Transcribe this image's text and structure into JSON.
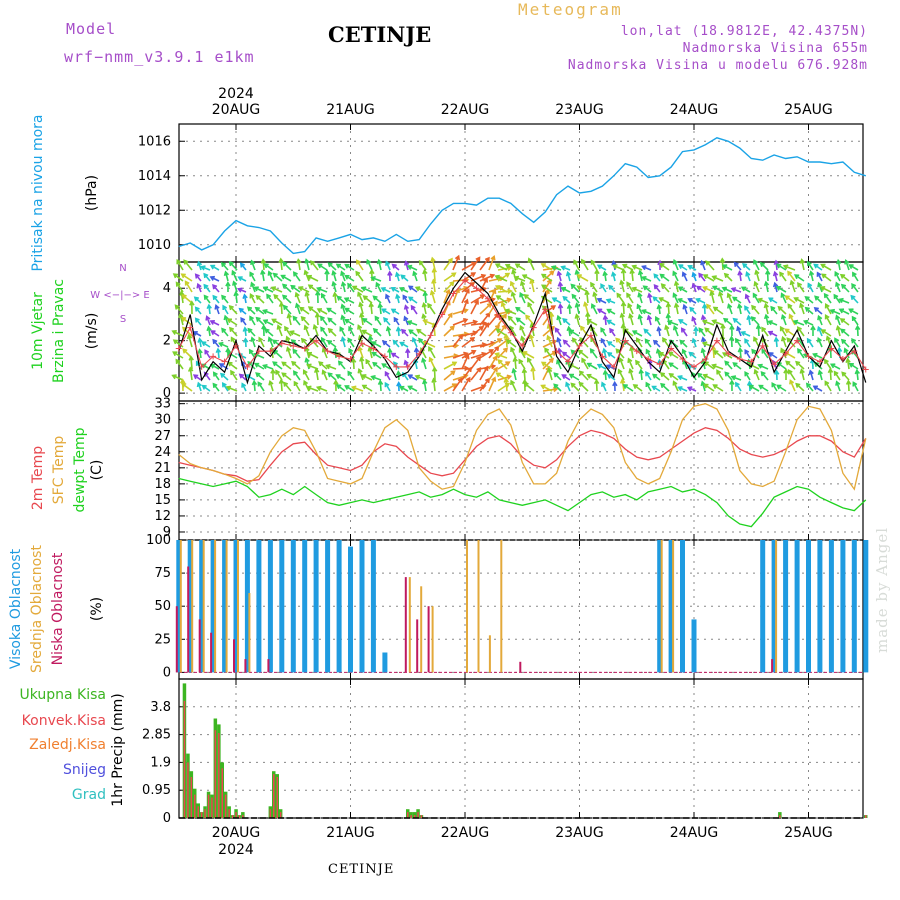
{
  "header": {
    "model_label": "Model",
    "model_name": "wrf−nmm_v3.9.1  e1km",
    "title": "CETINJE",
    "meteogram": "Meteogram",
    "lonlat": "lon,lat (18.9812E, 42.4375N)",
    "elevation": "Nadmorska Visina 655m",
    "model_elevation": "Nadmorska Visina u modelu 676.928m"
  },
  "footer": {
    "station": "CETINJE",
    "made_by": "made by Angel"
  },
  "colors": {
    "pressure": "#1aa3e6",
    "t2m": "#e8484f",
    "sfc": "#e3a93a",
    "dewpt": "#1fd21f",
    "high": "#1f9be0",
    "mid": "#e3a93a",
    "low": "#c0195f",
    "total": "#3cb521",
    "convective": "#e8484f",
    "frozen": "#f08030",
    "snow": "#5050dd",
    "graupel": "#30c0c0"
  },
  "chart_data": [
    {
      "type": "line",
      "panel": "pressure",
      "labels": [
        "Pritisak na nivou mora",
        "(hPa)"
      ],
      "x_ticks": [
        "20AUG",
        "21AUG",
        "22AUG",
        "23AUG",
        "24AUG",
        "25AUG"
      ],
      "top_year": "2024",
      "ylim": [
        1009.0,
        1017.0
      ],
      "y_ticks": [
        1010,
        1012,
        1014,
        1016
      ],
      "x": [
        -0.5,
        -0.4,
        -0.3,
        -0.2,
        -0.1,
        0.0,
        0.1,
        0.2,
        0.3,
        0.4,
        0.5,
        0.6,
        0.7,
        0.8,
        0.9,
        1.0,
        1.1,
        1.2,
        1.3,
        1.4,
        1.5,
        1.6,
        1.7,
        1.8,
        1.9,
        2.0,
        2.1,
        2.2,
        2.3,
        2.4,
        2.5,
        2.6,
        2.7,
        2.8,
        2.9,
        3.0,
        3.1,
        3.2,
        3.3,
        3.4,
        3.5,
        3.6,
        3.7,
        3.8,
        3.9,
        4.0,
        4.1,
        4.2,
        4.3,
        4.4,
        4.5,
        4.6,
        4.7,
        4.8,
        4.9,
        5.0,
        5.1,
        5.2,
        5.3,
        5.4,
        5.5
      ],
      "values": [
        1009.9,
        1010.1,
        1009.7,
        1010.0,
        1010.8,
        1011.4,
        1011.1,
        1011.0,
        1010.8,
        1010.1,
        1009.5,
        1009.6,
        1010.4,
        1010.2,
        1010.4,
        1010.6,
        1010.3,
        1010.4,
        1010.2,
        1010.6,
        1010.2,
        1010.3,
        1011.2,
        1012.0,
        1012.4,
        1012.4,
        1012.3,
        1012.7,
        1012.7,
        1012.4,
        1011.8,
        1011.3,
        1011.9,
        1012.9,
        1013.4,
        1013.0,
        1013.1,
        1013.4,
        1014.0,
        1014.7,
        1014.5,
        1013.9,
        1014.0,
        1014.5,
        1015.4,
        1015.5,
        1015.8,
        1016.2,
        1016.0,
        1015.6,
        1015.0,
        1014.9,
        1015.2,
        1015.0,
        1015.1,
        1014.8,
        1014.8,
        1014.7,
        1014.8,
        1014.2,
        1014.0
      ]
    },
    {
      "type": "line",
      "panel": "wind",
      "labels": [
        "10m Vjetar",
        "Brzina i Pravac",
        "(m/s)"
      ],
      "compass": "W  <−|−>  E",
      "compass_n": "N",
      "compass_s": "S",
      "ylim": [
        -0.3,
        5.0
      ],
      "y_ticks": [
        0,
        2,
        4
      ],
      "x": [
        -0.5,
        -0.4,
        -0.3,
        -0.2,
        -0.1,
        0.0,
        0.1,
        0.2,
        0.3,
        0.4,
        0.5,
        0.6,
        0.7,
        0.8,
        0.9,
        1.0,
        1.1,
        1.2,
        1.3,
        1.4,
        1.5,
        1.6,
        1.7,
        1.8,
        1.9,
        2.0,
        2.1,
        2.2,
        2.3,
        2.4,
        2.5,
        2.6,
        2.7,
        2.8,
        2.9,
        3.0,
        3.1,
        3.2,
        3.3,
        3.4,
        3.5,
        3.6,
        3.7,
        3.8,
        3.9,
        4.0,
        4.1,
        4.2,
        4.3,
        4.4,
        4.5,
        4.6,
        4.7,
        4.8,
        4.9,
        5.0,
        5.1,
        5.2,
        5.3,
        5.4,
        5.5
      ],
      "values": [
        1.6,
        3.0,
        0.5,
        1.2,
        0.8,
        2.0,
        0.4,
        1.8,
        1.4,
        2.0,
        1.9,
        1.7,
        2.2,
        1.6,
        1.5,
        1.2,
        2.2,
        1.8,
        1.3,
        0.6,
        0.8,
        1.4,
        2.2,
        3.2,
        4.0,
        4.6,
        4.2,
        3.8,
        3.0,
        2.4,
        1.6,
        2.6,
        3.8,
        1.4,
        0.8,
        1.8,
        2.6,
        1.2,
        0.6,
        2.4,
        1.8,
        1.2,
        0.8,
        2.0,
        1.4,
        0.6,
        1.2,
        2.6,
        1.6,
        1.3,
        1.0,
        2.2,
        0.8,
        1.6,
        2.4,
        1.4,
        1.0,
        2.0,
        1.2,
        1.8,
        0.4
      ],
      "mean_values": [
        1.7,
        2.5,
        1.0,
        1.4,
        1.2,
        1.8,
        1.0,
        1.6,
        1.6,
        1.9,
        1.8,
        1.7,
        2.0,
        1.6,
        1.4,
        1.3,
        1.9,
        1.7,
        1.4,
        1.0,
        1.0,
        1.5,
        2.2,
        3.0,
        3.8,
        4.3,
        4.0,
        3.6,
        2.9,
        2.3,
        1.8,
        2.5,
        3.2,
        1.6,
        1.2,
        1.8,
        2.2,
        1.4,
        1.0,
        2.0,
        1.6,
        1.3,
        1.1,
        1.7,
        1.3,
        1.0,
        1.3,
        2.0,
        1.5,
        1.3,
        1.2,
        1.8,
        1.1,
        1.5,
        2.0,
        1.4,
        1.2,
        1.7,
        1.3,
        1.6,
        0.9
      ]
    },
    {
      "type": "line",
      "panel": "temperature",
      "labels": [
        "2m Temp",
        "SFC Temp",
        "dewpt Temp",
        "(C)"
      ],
      "ylim": [
        7.5,
        33.5
      ],
      "y_ticks": [
        9,
        12,
        15,
        18,
        21,
        24,
        27,
        30,
        33
      ],
      "x": [
        -0.5,
        -0.4,
        -0.3,
        -0.2,
        -0.1,
        0.0,
        0.1,
        0.2,
        0.3,
        0.4,
        0.5,
        0.6,
        0.7,
        0.8,
        0.9,
        1.0,
        1.1,
        1.2,
        1.3,
        1.4,
        1.5,
        1.6,
        1.7,
        1.8,
        1.9,
        2.0,
        2.1,
        2.2,
        2.3,
        2.4,
        2.5,
        2.6,
        2.7,
        2.8,
        2.9,
        3.0,
        3.1,
        3.2,
        3.3,
        3.4,
        3.5,
        3.6,
        3.7,
        3.8,
        3.9,
        4.0,
        4.1,
        4.2,
        4.3,
        4.4,
        4.5,
        4.6,
        4.7,
        4.8,
        4.9,
        5.0,
        5.1,
        5.2,
        5.3,
        5.4,
        5.5
      ],
      "series": [
        {
          "name": "2m Temp",
          "values": [
            22.0,
            21.5,
            21.0,
            20.5,
            19.8,
            19.5,
            18.5,
            18.8,
            21.5,
            24.0,
            25.5,
            25.8,
            23.5,
            21.5,
            21.0,
            20.5,
            21.5,
            24.0,
            25.5,
            25.0,
            23.0,
            21.5,
            20.0,
            19.5,
            20.0,
            22.5,
            25.0,
            26.5,
            27.0,
            25.5,
            23.0,
            21.5,
            21.0,
            22.5,
            25.0,
            27.0,
            28.0,
            27.5,
            26.5,
            24.5,
            23.0,
            22.5,
            23.0,
            24.5,
            26.0,
            27.5,
            28.5,
            28.0,
            26.5,
            24.5,
            23.5,
            23.0,
            23.5,
            24.5,
            26.0,
            27.0,
            27.0,
            26.0,
            24.0,
            23.0,
            26.5
          ]
        },
        {
          "name": "SFC Temp",
          "values": [
            23.5,
            21.8,
            21.0,
            20.5,
            19.8,
            19.0,
            18.0,
            19.5,
            24.0,
            27.0,
            28.5,
            28.0,
            24.0,
            19.0,
            18.5,
            18.0,
            19.0,
            24.0,
            28.5,
            30.0,
            28.0,
            21.0,
            18.5,
            17.0,
            17.5,
            22.0,
            28.0,
            31.0,
            32.0,
            29.0,
            22.0,
            18.0,
            18.0,
            20.0,
            26.0,
            30.0,
            32.0,
            31.0,
            28.5,
            22.0,
            19.0,
            18.0,
            19.0,
            24.0,
            30.0,
            32.5,
            33.0,
            32.0,
            28.0,
            20.5,
            18.0,
            17.5,
            18.5,
            24.0,
            30.0,
            32.5,
            32.0,
            28.0,
            20.0,
            17.0,
            26.5
          ]
        },
        {
          "name": "dewpt Temp",
          "values": [
            19.0,
            18.5,
            18.0,
            17.5,
            18.0,
            18.5,
            17.5,
            15.5,
            16.0,
            17.0,
            16.0,
            17.5,
            16.0,
            14.5,
            14.0,
            14.5,
            15.0,
            14.5,
            15.0,
            15.5,
            16.0,
            16.5,
            15.5,
            16.0,
            17.0,
            16.0,
            15.5,
            16.5,
            15.0,
            14.5,
            14.0,
            14.5,
            15.0,
            14.0,
            13.0,
            14.5,
            16.0,
            16.5,
            15.5,
            16.0,
            15.0,
            16.5,
            17.0,
            17.5,
            16.5,
            17.0,
            16.0,
            14.5,
            12.0,
            10.5,
            10.0,
            12.5,
            15.5,
            16.5,
            17.5,
            17.0,
            15.5,
            14.5,
            13.5,
            13.0,
            15.0
          ]
        }
      ]
    },
    {
      "type": "bar",
      "panel": "cloud",
      "labels": [
        "Visoka Oblacnost",
        "Srednja Oblacnost",
        "Niska Oblacnost",
        "(%)"
      ],
      "ylim": [
        -5,
        100
      ],
      "y_ticks": [
        0,
        25,
        50,
        75,
        100
      ],
      "x": [
        -0.5,
        -0.4,
        -0.3,
        -0.2,
        -0.1,
        0.0,
        0.1,
        0.2,
        0.3,
        0.4,
        0.5,
        0.6,
        0.7,
        0.8,
        0.9,
        1.0,
        1.1,
        1.2,
        1.3,
        1.4,
        1.5,
        1.6,
        1.7,
        1.8,
        1.9,
        2.0,
        2.1,
        2.2,
        2.3,
        2.4,
        2.5,
        2.6,
        2.7,
        2.8,
        2.9,
        3.0,
        3.1,
        3.2,
        3.3,
        3.4,
        3.5,
        3.6,
        3.7,
        3.8,
        3.9,
        4.0,
        4.1,
        4.2,
        4.3,
        4.4,
        4.5,
        4.6,
        4.7,
        4.8,
        4.9,
        5.0,
        5.1,
        5.2,
        5.3,
        5.4,
        5.5
      ],
      "series": [
        {
          "name": "Visoka Oblacnost",
          "values": [
            100,
            100,
            100,
            100,
            100,
            100,
            100,
            100,
            100,
            100,
            100,
            100,
            100,
            100,
            100,
            95,
            100,
            100,
            15,
            0,
            0,
            0,
            0,
            0,
            0,
            0,
            0,
            0,
            0,
            0,
            0,
            0,
            0,
            0,
            0,
            0,
            0,
            0,
            0,
            0,
            0,
            0,
            100,
            100,
            100,
            40,
            0,
            0,
            0,
            0,
            0,
            100,
            100,
            100,
            100,
            100,
            100,
            100,
            100,
            100,
            100
          ]
        },
        {
          "name": "Srednja Oblacnost",
          "values": [
            100,
            100,
            100,
            100,
            100,
            100,
            60,
            0,
            0,
            0,
            0,
            0,
            0,
            0,
            0,
            0,
            0,
            0,
            0,
            0,
            72,
            65,
            50,
            0,
            0,
            100,
            100,
            28,
            100,
            0,
            0,
            0,
            0,
            0,
            0,
            0,
            0,
            0,
            0,
            0,
            0,
            0,
            100,
            100,
            0,
            0,
            0,
            0,
            0,
            0,
            0,
            0,
            100,
            0,
            0,
            0,
            0,
            0,
            0,
            0,
            0
          ]
        },
        {
          "name": "Niska Oblacnost",
          "values": [
            50,
            80,
            40,
            30,
            0,
            25,
            10,
            0,
            10,
            0,
            0,
            0,
            0,
            0,
            0,
            0,
            0,
            0,
            0,
            0,
            72,
            40,
            50,
            0,
            0,
            0,
            0,
            0,
            0,
            0,
            8,
            0,
            0,
            0,
            0,
            0,
            0,
            0,
            0,
            0,
            0,
            0,
            0,
            0,
            0,
            0,
            0,
            0,
            0,
            0,
            0,
            0,
            10,
            0,
            0,
            0,
            0,
            0,
            0,
            0,
            0
          ]
        }
      ]
    },
    {
      "type": "bar",
      "panel": "precip",
      "labels": [
        "Ukupna Kisa",
        "Konvek.Kisa",
        "Zaledj.Kisa",
        "Snijeg",
        "Grad",
        "1hr Precip (mm)"
      ],
      "ylim": [
        0,
        4.75
      ],
      "y_ticks": [
        0,
        0.95,
        1.9,
        2.85,
        3.8
      ],
      "y_tick_labels": [
        "0",
        "0.95",
        "1.9",
        "2.85",
        "3.8"
      ],
      "x_ticks": [
        "20AUG",
        "21AUG",
        "22AUG",
        "23AUG",
        "24AUG",
        "25AUG"
      ],
      "bottom_year": "2024",
      "x": [
        -0.45,
        -0.42,
        -0.39,
        -0.36,
        -0.33,
        -0.3,
        -0.27,
        -0.24,
        -0.21,
        -0.18,
        -0.15,
        -0.12,
        -0.09,
        -0.06,
        -0.03,
        0.0,
        0.03,
        0.06,
        0.09,
        0.3,
        0.33,
        0.36,
        0.39,
        0.42,
        1.5,
        1.53,
        1.56,
        1.59,
        1.62,
        1.65,
        4.75,
        5.5
      ],
      "series": [
        {
          "name": "Ukupna Kisa",
          "values": [
            4.6,
            2.2,
            1.6,
            1.0,
            0.5,
            0.2,
            0.4,
            0.9,
            0.8,
            3.4,
            3.2,
            1.9,
            0.9,
            0.4,
            0.1,
            0.3,
            0.1,
            0.2,
            0.0,
            0.4,
            1.6,
            1.5,
            0.3,
            0.0,
            0.3,
            0.2,
            0.2,
            0.3,
            0.1,
            0.0,
            0.2,
            0.1
          ]
        },
        {
          "name": "Konvek.Kisa",
          "values": [
            4.0,
            1.9,
            1.4,
            0.8,
            0.4,
            0.2,
            0.3,
            0.8,
            0.7,
            3.0,
            2.9,
            1.7,
            0.8,
            0.3,
            0.1,
            0.2,
            0.1,
            0.1,
            0.0,
            0.3,
            1.5,
            1.4,
            0.2,
            0.0,
            0.2,
            0.1,
            0.1,
            0.2,
            0.1,
            0.0,
            0.1,
            0.1
          ]
        }
      ]
    }
  ]
}
